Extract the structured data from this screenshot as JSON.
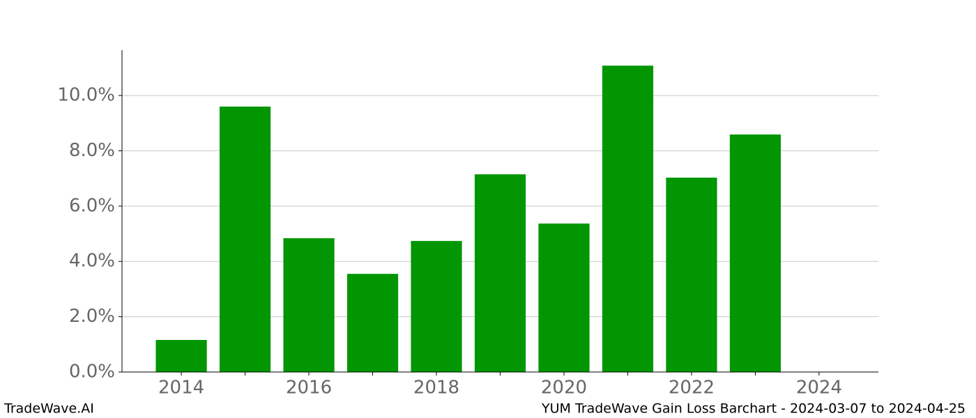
{
  "chart_data": {
    "type": "bar",
    "title": "YUM TradeWave Gain Loss Barchart - 2024-03-07 to 2024-04-25",
    "watermark": "TradeWave.AI",
    "x": [
      2014,
      2015,
      2016,
      2017,
      2018,
      2019,
      2020,
      2021,
      2022,
      2023
    ],
    "values": [
      1.16,
      9.6,
      4.84,
      3.55,
      4.74,
      7.15,
      5.37,
      11.08,
      7.03,
      8.59
    ],
    "color": "#029702",
    "xlim": [
      2013.07,
      2024.93
    ],
    "xticks": [
      2014,
      2016,
      2018,
      2020,
      2022,
      2024
    ],
    "xticks_minor": [
      2015,
      2017,
      2019,
      2021,
      2023
    ],
    "ylim": [
      0,
      11.64
    ],
    "yticks": [
      {
        "value": 0,
        "label": "0.0%"
      },
      {
        "value": 2,
        "label": "2.0%"
      },
      {
        "value": 4,
        "label": "4.0%"
      },
      {
        "value": 6,
        "label": "6.0%"
      },
      {
        "value": 8,
        "label": "8.0%"
      },
      {
        "value": 10,
        "label": "10.0%"
      }
    ],
    "grid": true
  }
}
